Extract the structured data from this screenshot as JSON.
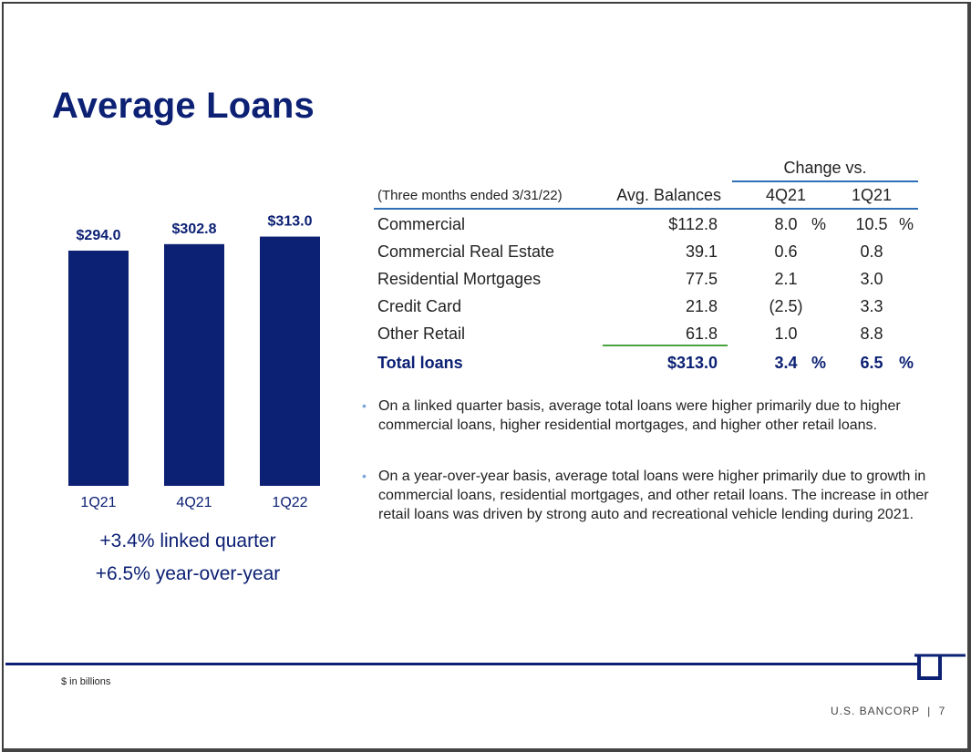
{
  "page": {
    "title": "Average Loans"
  },
  "colors": {
    "navy": "#0c2074",
    "rule_blue": "#2e6fb7",
    "green": "#4aa33f",
    "bullet": "#7aa6d6"
  },
  "chart_data": {
    "type": "bar",
    "title": "",
    "xlabel": "",
    "ylabel": "",
    "categories": [
      "1Q21",
      "4Q21",
      "1Q22"
    ],
    "values": [
      294.0,
      302.8,
      313.0
    ],
    "value_labels": [
      "$294.0",
      "$302.8",
      "$313.0"
    ],
    "unit": "$ in billions",
    "ylim": [
      0,
      320
    ],
    "bar_color": "#0c2074",
    "grid": false,
    "legend": "none"
  },
  "growth": {
    "linked_quarter": "+3.4% linked quarter",
    "year_over_year": "+6.5% year-over-year"
  },
  "table": {
    "change_header": "Change vs.",
    "period_note": "(Three months ended 3/31/22)",
    "columns": {
      "balance": "Avg. Balances",
      "q4": "4Q21",
      "q1": "1Q21"
    },
    "rows": [
      {
        "label": "Commercial",
        "balance": "$112.8",
        "q4": "8.0",
        "q4_pct": "%",
        "q1": "10.5",
        "q1_pct": "%"
      },
      {
        "label": "Commercial Real Estate",
        "balance": "39.1",
        "q4": "0.6",
        "q4_pct": "",
        "q1": "0.8",
        "q1_pct": ""
      },
      {
        "label": "Residential Mortgages",
        "balance": "77.5",
        "q4": "2.1",
        "q4_pct": "",
        "q1": "3.0",
        "q1_pct": ""
      },
      {
        "label": "Credit Card",
        "balance": "21.8",
        "q4": "(2.5)",
        "q4_pct": "",
        "q1": "3.3",
        "q1_pct": ""
      },
      {
        "label": "Other Retail",
        "balance": "61.8",
        "q4": "1.0",
        "q4_pct": "",
        "q1": "8.8",
        "q1_pct": ""
      }
    ],
    "total": {
      "label": "Total loans",
      "balance": "$313.0",
      "q4": "3.4",
      "q4_pct": "%",
      "q1": "6.5",
      "q1_pct": "%"
    }
  },
  "bullets": [
    "On a linked quarter basis, average total loans were higher primarily due to higher commercial loans, higher residential mortgages, and higher other retail loans.",
    "On a year-over-year basis, average total loans were higher primarily due to growth in commercial loans, residential mortgages, and other retail loans. The increase in other retail loans was driven by strong auto and recreational vehicle lending during 2021."
  ],
  "bullet_marker": "•",
  "footer": {
    "footnote": "$ in billions",
    "brand": "U.S. BANCORP",
    "separator": "|",
    "page_number": "7"
  }
}
